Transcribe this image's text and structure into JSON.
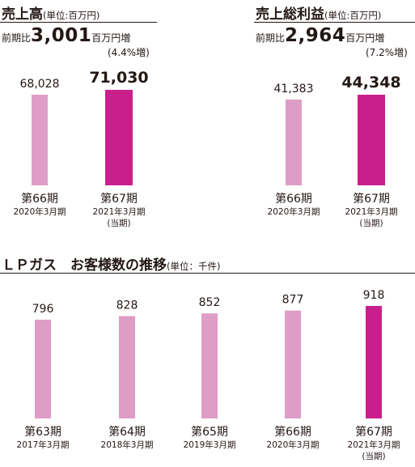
{
  "colors": {
    "prior": "#de9dc6",
    "current": "#c91f8c",
    "text": "#231815"
  },
  "sales": {
    "title": "売上高",
    "unit": "(単位:百万円)",
    "growth_prefix": "前期比",
    "growth_value": "3,001",
    "growth_suffix": "百万円増",
    "growth_pct": "(4.4%増)"
  },
  "gross": {
    "title": "売上総利益",
    "unit": "(単位:百万円)",
    "growth_prefix": "前期比",
    "growth_value": "2,964",
    "growth_suffix": "百万円増",
    "growth_pct": "(7.2%増)"
  },
  "lpg": {
    "title": "ＬＰガス　お客様数の推移",
    "unit": "(単位：千件)"
  },
  "chart_data": [
    {
      "type": "bar",
      "title": "売上高",
      "unit": "百万円",
      "categories": [
        "第66期",
        "第67期"
      ],
      "sublabels": [
        "2020年3月期",
        "2021年3月期"
      ],
      "notes": [
        "",
        "(当期)"
      ],
      "values": [
        68028,
        71030
      ],
      "value_labels": [
        "68,028",
        "71,030"
      ],
      "highlight_index": 1
    },
    {
      "type": "bar",
      "title": "売上総利益",
      "unit": "百万円",
      "categories": [
        "第66期",
        "第67期"
      ],
      "sublabels": [
        "2020年3月期",
        "2021年3月期"
      ],
      "notes": [
        "",
        "(当期)"
      ],
      "values": [
        41383,
        44348
      ],
      "value_labels": [
        "41,383",
        "44,348"
      ],
      "highlight_index": 1
    },
    {
      "type": "bar",
      "title": "ＬＰガス　お客様数の推移",
      "unit": "千件",
      "categories": [
        "第63期",
        "第64期",
        "第65期",
        "第66期",
        "第67期"
      ],
      "sublabels": [
        "2017年3月期",
        "2018年3月期",
        "2019年3月期",
        "2020年3月期",
        "2021年3月期"
      ],
      "notes": [
        "",
        "",
        "",
        "",
        "(当期)"
      ],
      "values": [
        796,
        828,
        852,
        877,
        918
      ],
      "value_labels": [
        "796",
        "828",
        "852",
        "877",
        "918"
      ],
      "highlight_index": 4
    }
  ]
}
